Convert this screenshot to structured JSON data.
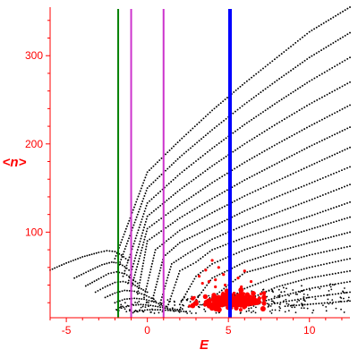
{
  "chart_data": {
    "type": "scatter",
    "title": "",
    "xlabel": "E",
    "ylabel": "<n>",
    "xlim": [
      -6,
      12.5
    ],
    "ylim": [
      3,
      355
    ],
    "x_ticks": [
      -5,
      0,
      5,
      10
    ],
    "y_ticks": [
      100,
      200,
      300
    ],
    "grid": false,
    "legend": "none",
    "colors": {
      "axes": "#ff0000",
      "dots": "#000000",
      "highlight": "#ff0000",
      "green_line": "#008000",
      "magenta_line": "#cc33cc",
      "blue_line": "#0000ff"
    },
    "vertical_lines": [
      {
        "x": -1.8,
        "color": "#008000"
      },
      {
        "x": -1.0,
        "color": "#cc33cc"
      },
      {
        "x": 1.0,
        "color": "#cc33cc"
      },
      {
        "x": 5.1,
        "color": "#0000ff"
      }
    ],
    "dot_branches": [
      {
        "x": [
          -2.0,
          0,
          2,
          4,
          6,
          8,
          10,
          12.5
        ],
        "y": [
          70,
          168,
          204,
          238,
          269,
          298,
          327,
          355
        ]
      },
      {
        "x": [
          -1.8,
          0,
          2,
          4,
          6,
          8,
          10,
          12.5
        ],
        "y": [
          60,
          150,
          185,
          216,
          245,
          272,
          298,
          326
        ]
      },
      {
        "x": [
          -1.5,
          0,
          2,
          4,
          6,
          8,
          10,
          12.5
        ],
        "y": [
          50,
          133,
          166,
          195,
          222,
          247,
          271,
          298
        ]
      },
      {
        "x": [
          -1.2,
          0,
          2,
          4,
          6,
          8,
          10,
          12.5
        ],
        "y": [
          42,
          118,
          148,
          175,
          200,
          223,
          245,
          270
        ]
      },
      {
        "x": [
          -1.0,
          0,
          2,
          4,
          6,
          8,
          10,
          12.5
        ],
        "y": [
          36,
          104,
          131,
          156,
          179,
          200,
          220,
          244
        ]
      },
      {
        "x": [
          -0.6,
          0,
          2,
          4,
          6,
          8,
          10,
          12.5
        ],
        "y": [
          30,
          90,
          116,
          138,
          159,
          178,
          197,
          219
        ]
      },
      {
        "x": [
          -0.2,
          0.5,
          2,
          4,
          6,
          8,
          10,
          12.5
        ],
        "y": [
          26,
          80,
          102,
          122,
          141,
          158,
          175,
          196
        ]
      },
      {
        "x": [
          0.3,
          1,
          2,
          4,
          6,
          8,
          10,
          12.5
        ],
        "y": [
          22,
          72,
          88,
          106,
          124,
          140,
          155,
          174
        ]
      },
      {
        "x": [
          0.8,
          1.5,
          2.5,
          4,
          6,
          8,
          10,
          12.5
        ],
        "y": [
          20,
          64,
          76,
          92,
          108,
          122,
          136,
          154
        ]
      },
      {
        "x": [
          1.3,
          2,
          3,
          4,
          6,
          8,
          10,
          12.5
        ],
        "y": [
          18,
          56,
          66,
          80,
          94,
          106,
          118,
          134
        ]
      },
      {
        "x": [
          2,
          3,
          4,
          6,
          8,
          10,
          12.5
        ],
        "y": [
          18,
          50,
          64,
          80,
          92,
          103,
          117
        ]
      },
      {
        "x": [
          2.8,
          4,
          6,
          8,
          10,
          12.5
        ],
        "y": [
          18,
          48,
          66,
          78,
          88,
          100
        ]
      },
      {
        "x": [
          3.5,
          5,
          6,
          8,
          10,
          12.5
        ],
        "y": [
          18,
          40,
          54,
          64,
          74,
          84
        ]
      },
      {
        "x": [
          4.5,
          6,
          8,
          10,
          12.5
        ],
        "y": [
          18,
          36,
          50,
          60,
          70
        ]
      },
      {
        "x": [
          5.5,
          7,
          8,
          10,
          12.5
        ],
        "y": [
          18,
          30,
          38,
          48,
          56
        ]
      },
      {
        "x": [
          6.5,
          8,
          10,
          12.5
        ],
        "y": [
          18,
          26,
          36,
          44
        ]
      },
      {
        "x": [
          7.5,
          10,
          12.5
        ],
        "y": [
          18,
          26,
          32
        ]
      },
      {
        "x": [
          8.5,
          12.5
        ],
        "y": [
          16,
          22
        ]
      }
    ],
    "left_branches": [
      {
        "x": [
          -6.0,
          -5,
          -4,
          -3,
          -2.5,
          -2,
          -1.6,
          -1.2
        ],
        "y": [
          57,
          65,
          72,
          77,
          79,
          78,
          74,
          68
        ]
      },
      {
        "x": [
          -4.5,
          -3.5,
          -2.8,
          -2.2,
          -1.8,
          -1.4,
          -1.0
        ],
        "y": [
          48,
          57,
          63,
          66,
          65,
          61,
          55
        ]
      },
      {
        "x": [
          -3.8,
          -3.0,
          -2.4,
          -1.9,
          -1.4,
          -1.0,
          -0.6
        ],
        "y": [
          39,
          47,
          53,
          55,
          53,
          48,
          42
        ]
      },
      {
        "x": [
          -3.2,
          -2.6,
          -2.0,
          -1.5,
          -1.0,
          -0.5,
          0
        ],
        "y": [
          32,
          38,
          43,
          44,
          42,
          37,
          32
        ]
      },
      {
        "x": [
          -2.6,
          -2.0,
          -1.4,
          -0.8,
          -0.2,
          0.4
        ],
        "y": [
          26,
          31,
          34,
          33,
          29,
          24
        ]
      },
      {
        "x": [
          -2.0,
          -1.4,
          -0.8,
          -0.2,
          0.4,
          1.0
        ],
        "y": [
          20,
          24,
          25,
          24,
          21,
          17
        ]
      },
      {
        "x": [
          -1.6,
          -1.0,
          -0.4,
          0.2,
          0.8,
          1.4,
          2.0
        ],
        "y": [
          14,
          17,
          18,
          17,
          15,
          13,
          12
        ]
      },
      {
        "x": [
          -0.8,
          0,
          0.8,
          1.6,
          2.4
        ],
        "y": [
          10,
          12,
          12,
          11,
          10
        ]
      }
    ],
    "red_cluster": {
      "x_range": [
        2.8,
        7.2
      ],
      "y_range": [
        12,
        35
      ],
      "center": [
        5.2,
        22
      ]
    },
    "red_scatter": [
      [
        4.0,
        68
      ],
      [
        4.4,
        60
      ],
      [
        3.6,
        57
      ],
      [
        4.7,
        52
      ],
      [
        3.2,
        50
      ],
      [
        4.2,
        46
      ],
      [
        5.6,
        48
      ],
      [
        6.0,
        56
      ],
      [
        3.4,
        42
      ],
      [
        4.8,
        40
      ],
      [
        6.4,
        44
      ],
      [
        2.6,
        16
      ],
      [
        7.0,
        30
      ],
      [
        2.9,
        26
      ],
      [
        4.2,
        38
      ],
      [
        3.8,
        44
      ],
      [
        5.8,
        38
      ]
    ]
  }
}
